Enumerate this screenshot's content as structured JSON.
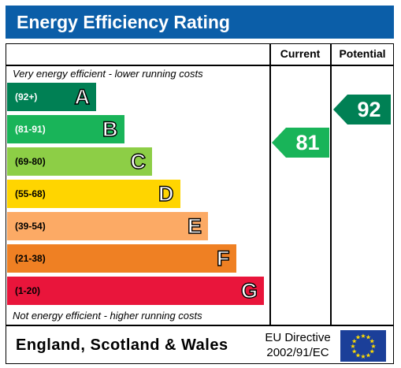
{
  "header": {
    "title": "Energy Efficiency Rating"
  },
  "columns": {
    "current": "Current",
    "potential": "Potential"
  },
  "notes": {
    "top": "Very energy efficient - lower running costs",
    "bottom": "Not energy efficient - higher running costs"
  },
  "chart_data": {
    "type": "bar",
    "title": "Energy Efficiency Rating",
    "categories": [
      "A",
      "B",
      "C",
      "D",
      "E",
      "F",
      "G"
    ],
    "ranges": [
      "(92+)",
      "(81-91)",
      "(69-80)",
      "(55-68)",
      "(39-54)",
      "(21-38)",
      "(1-20)"
    ],
    "colors": [
      "#008054",
      "#19b459",
      "#8dce46",
      "#ffd500",
      "#fcaa65",
      "#ef8023",
      "#e9153b"
    ],
    "range_text_colors": [
      "#ffffff",
      "#ffffff",
      "#000000",
      "#000000",
      "#000000",
      "#000000",
      "#000000"
    ],
    "current": {
      "value": 81,
      "band": "B",
      "color": "#19b459"
    },
    "potential": {
      "value": 92,
      "band": "A",
      "color": "#008054"
    }
  },
  "footer": {
    "country": "England, Scotland & Wales",
    "directive_line1": "EU Directive",
    "directive_line2": "2002/91/EC",
    "flag_color": "#1b3f99",
    "star_color": "#ffdd00"
  }
}
